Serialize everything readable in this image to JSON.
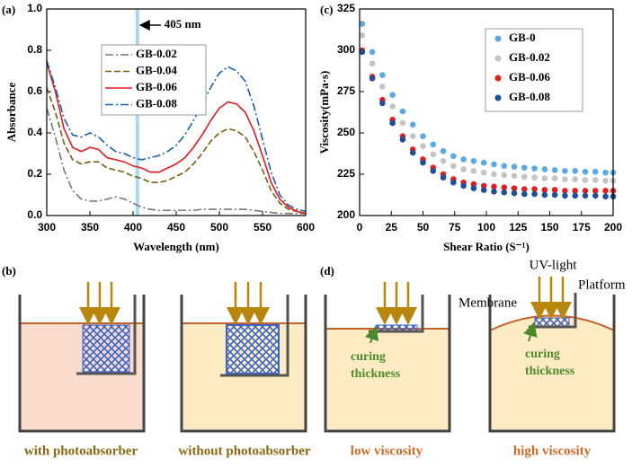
{
  "chart_data": [
    {
      "type": "line",
      "panel_label": "(a)",
      "x_label": "Wavelength (nm)",
      "y_label": "Absorbance",
      "x": [
        300,
        310,
        320,
        330,
        340,
        350,
        360,
        370,
        380,
        390,
        400,
        410,
        420,
        430,
        440,
        450,
        460,
        470,
        480,
        490,
        500,
        510,
        520,
        530,
        540,
        550,
        560,
        570,
        580,
        590,
        600
      ],
      "series": [
        {
          "name": "GB-0.02",
          "color": "#777777",
          "linestyle": "dashdot",
          "values": [
            0.52,
            0.38,
            0.22,
            0.12,
            0.08,
            0.07,
            0.07,
            0.08,
            0.09,
            0.08,
            0.06,
            0.04,
            0.03,
            0.025,
            0.025,
            0.025,
            0.025,
            0.025,
            0.03,
            0.03,
            0.03,
            0.03,
            0.03,
            0.03,
            0.025,
            0.02,
            0.015,
            0.01,
            0.01,
            0.01,
            0.01
          ]
        },
        {
          "name": "GB-0.04",
          "color": "#7a5c12",
          "linestyle": "dashed",
          "values": [
            0.62,
            0.5,
            0.35,
            0.27,
            0.25,
            0.26,
            0.26,
            0.23,
            0.22,
            0.21,
            0.19,
            0.18,
            0.16,
            0.16,
            0.17,
            0.19,
            0.21,
            0.25,
            0.3,
            0.36,
            0.4,
            0.42,
            0.41,
            0.38,
            0.31,
            0.22,
            0.12,
            0.06,
            0.03,
            0.02,
            0.01
          ]
        },
        {
          "name": "GB-0.06",
          "color": "#e8191e",
          "linestyle": "solid",
          "values": [
            0.74,
            0.6,
            0.42,
            0.33,
            0.31,
            0.33,
            0.32,
            0.28,
            0.27,
            0.26,
            0.24,
            0.23,
            0.21,
            0.21,
            0.23,
            0.25,
            0.28,
            0.33,
            0.39,
            0.46,
            0.52,
            0.55,
            0.54,
            0.5,
            0.41,
            0.29,
            0.16,
            0.08,
            0.04,
            0.02,
            0.01
          ]
        },
        {
          "name": "GB-0.08",
          "color": "#1a5eb0",
          "linestyle": "dashdot",
          "values": [
            0.75,
            0.62,
            0.47,
            0.39,
            0.38,
            0.4,
            0.38,
            0.34,
            0.31,
            0.3,
            0.28,
            0.27,
            0.28,
            0.29,
            0.31,
            0.34,
            0.39,
            0.46,
            0.54,
            0.62,
            0.69,
            0.72,
            0.7,
            0.65,
            0.53,
            0.37,
            0.21,
            0.1,
            0.05,
            0.03,
            0.02
          ]
        }
      ],
      "xlim": [
        300,
        600
      ],
      "xticks": [
        300,
        350,
        400,
        450,
        500,
        550,
        600
      ],
      "ylim": [
        0,
        1
      ],
      "yticks": [
        {
          "value": 0,
          "label": "0.0"
        },
        0.2,
        0.4,
        0.6,
        0.8,
        {
          "value": 1,
          "label": "1.0"
        }
      ],
      "annotation": {
        "text": "405 nm",
        "x": 405,
        "color": "#a8d8f4"
      }
    },
    {
      "type": "scatter",
      "panel_label": "(c)",
      "x_label": "Shear Ratio (S⁻¹)",
      "y_label": "Viscosity(mPa·s)",
      "x": [
        2,
        10,
        18,
        26,
        34,
        42,
        50,
        58,
        66,
        74,
        82,
        90,
        98,
        106,
        114,
        122,
        130,
        138,
        146,
        154,
        162,
        170,
        178,
        186,
        194,
        200
      ],
      "series": [
        {
          "name": "GB-0",
          "color": "#5aa9e6",
          "values": [
            316,
            299,
            285,
            273,
            263,
            255,
            248,
            243,
            239,
            236,
            234,
            233,
            232,
            231,
            230,
            229.5,
            229,
            228.5,
            228,
            227.5,
            227,
            227,
            226.5,
            226.5,
            226,
            226
          ]
        },
        {
          "name": "GB-0.02",
          "color": "#c4c4c4",
          "values": [
            309,
            292,
            278,
            266,
            256,
            248,
            242,
            237,
            233,
            230,
            228,
            227,
            226,
            225,
            224.5,
            224,
            223.5,
            223,
            222.5,
            222.5,
            222,
            222,
            221.5,
            221.5,
            221,
            221
          ]
        },
        {
          "name": "GB-0.06",
          "color": "#e02020",
          "values": [
            300,
            284,
            270,
            258,
            248,
            240,
            234,
            229,
            225,
            222,
            220,
            219,
            218,
            217.5,
            217,
            216.5,
            216,
            216,
            215.5,
            215.5,
            215,
            215,
            215,
            215,
            215,
            215
          ]
        },
        {
          "name": "GB-0.08",
          "color": "#1f4e9a",
          "values": [
            299,
            283,
            268,
            256,
            246,
            238,
            232,
            227,
            223,
            220,
            218,
            216.5,
            215.5,
            214.5,
            214,
            213.5,
            213,
            213,
            212.5,
            212.5,
            212,
            212,
            212,
            212,
            211.5,
            211.5
          ]
        }
      ],
      "xlim": [
        0,
        200
      ],
      "xticks": [
        0,
        25,
        50,
        75,
        100,
        125,
        150,
        175,
        200
      ],
      "ylim": [
        200,
        325
      ],
      "yticks": [
        200,
        225,
        250,
        275,
        300,
        325
      ]
    }
  ],
  "panels": {
    "b": {
      "label": "(b)",
      "captions": [
        "with photoabsorber",
        "without photoabsorber"
      ]
    },
    "d": {
      "label": "(d)",
      "captions": [
        "low viscosity",
        "high viscosity"
      ],
      "uv_light": "UV-light",
      "membrane": "Membrane",
      "platform": "Platform",
      "curing_thickness": [
        [
          "curing",
          "thickness"
        ],
        [
          "curing",
          "thickness"
        ]
      ]
    }
  }
}
